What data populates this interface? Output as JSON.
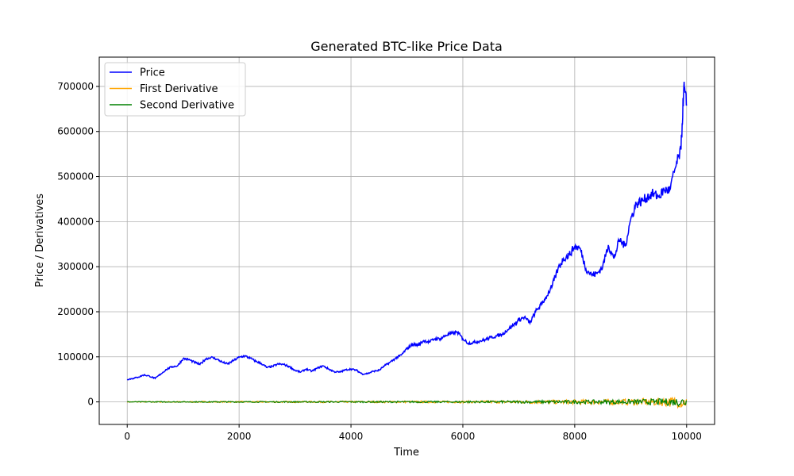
{
  "chart_data": {
    "type": "line",
    "title": "Generated BTC-like Price Data",
    "xlabel": "Time",
    "ylabel": "Price / Derivatives",
    "xlim": [
      -500,
      10500
    ],
    "ylim": [
      -50000,
      765000
    ],
    "xticks": [
      0,
      2000,
      4000,
      6000,
      8000,
      10000
    ],
    "yticks": [
      0,
      100000,
      200000,
      300000,
      400000,
      500000,
      600000,
      700000
    ],
    "xtick_labels": [
      "0",
      "2000",
      "4000",
      "6000",
      "8000",
      "10000"
    ],
    "ytick_labels": [
      "0",
      "100000",
      "200000",
      "300000",
      "400000",
      "500000",
      "600000",
      "700000"
    ],
    "grid": true,
    "legend_position": "upper-left",
    "series": [
      {
        "name": "Price",
        "color": "#0000ff",
        "x": [
          0,
          100,
          200,
          300,
          400,
          500,
          600,
          700,
          800,
          900,
          1000,
          1100,
          1200,
          1300,
          1400,
          1500,
          1600,
          1700,
          1800,
          1900,
          2000,
          2100,
          2200,
          2300,
          2400,
          2500,
          2600,
          2700,
          2800,
          2900,
          3000,
          3100,
          3200,
          3300,
          3400,
          3500,
          3600,
          3700,
          3800,
          3900,
          4000,
          4100,
          4200,
          4300,
          4400,
          4500,
          4600,
          4700,
          4800,
          4900,
          5000,
          5100,
          5200,
          5300,
          5400,
          5500,
          5600,
          5700,
          5800,
          5900,
          6000,
          6100,
          6200,
          6300,
          6400,
          6500,
          6600,
          6700,
          6800,
          6900,
          7000,
          7100,
          7200,
          7300,
          7400,
          7500,
          7600,
          7700,
          7800,
          7900,
          8000,
          8100,
          8200,
          8300,
          8400,
          8500,
          8600,
          8700,
          8800,
          8900,
          9000,
          9100,
          9200,
          9300,
          9400,
          9500,
          9600,
          9700,
          9800,
          9900,
          9950,
          10000
        ],
        "y": [
          50000,
          52000,
          55000,
          60000,
          57000,
          52000,
          62000,
          72000,
          78000,
          80000,
          96000,
          94000,
          88000,
          83000,
          95000,
          99000,
          95000,
          88000,
          84000,
          92000,
          99000,
          102000,
          97000,
          90000,
          85000,
          76000,
          79000,
          84000,
          83000,
          78000,
          70000,
          66000,
          73000,
          68000,
          75000,
          80000,
          73000,
          67000,
          66000,
          71000,
          73000,
          70000,
          62000,
          63000,
          68000,
          70000,
          80000,
          88000,
          97000,
          104000,
          118000,
          128000,
          126000,
          136000,
          133000,
          140000,
          140000,
          148000,
          152000,
          155000,
          140000,
          130000,
          132000,
          135000,
          138000,
          143000,
          146000,
          150000,
          160000,
          170000,
          182000,
          188000,
          175000,
          200000,
          216000,
          235000,
          258000,
          295000,
          318000,
          326000,
          345000,
          340000,
          295000,
          282000,
          285000,
          300000,
          348000,
          318000,
          360000,
          345000,
          405000,
          440000,
          445000,
          455000,
          462000,
          455000,
          470000,
          470000,
          520000,
          560000,
          700000,
          660000
        ]
      },
      {
        "name": "First Derivative",
        "color": "#ffa500",
        "x": [
          0,
          2000,
          4000,
          6000,
          7000,
          8000,
          9000,
          9500,
          9800,
          10000
        ],
        "amp": [
          1000,
          1500,
          2000,
          2500,
          3500,
          5000,
          7000,
          9000,
          12000,
          14000
        ]
      },
      {
        "name": "Second Derivative",
        "color": "#008000",
        "x": [
          0,
          2000,
          4000,
          6000,
          7000,
          8000,
          9000,
          9500,
          9800,
          10000
        ],
        "amp": [
          800,
          1200,
          1600,
          2000,
          2800,
          4000,
          5500,
          7000,
          9000,
          11000
        ]
      }
    ]
  }
}
